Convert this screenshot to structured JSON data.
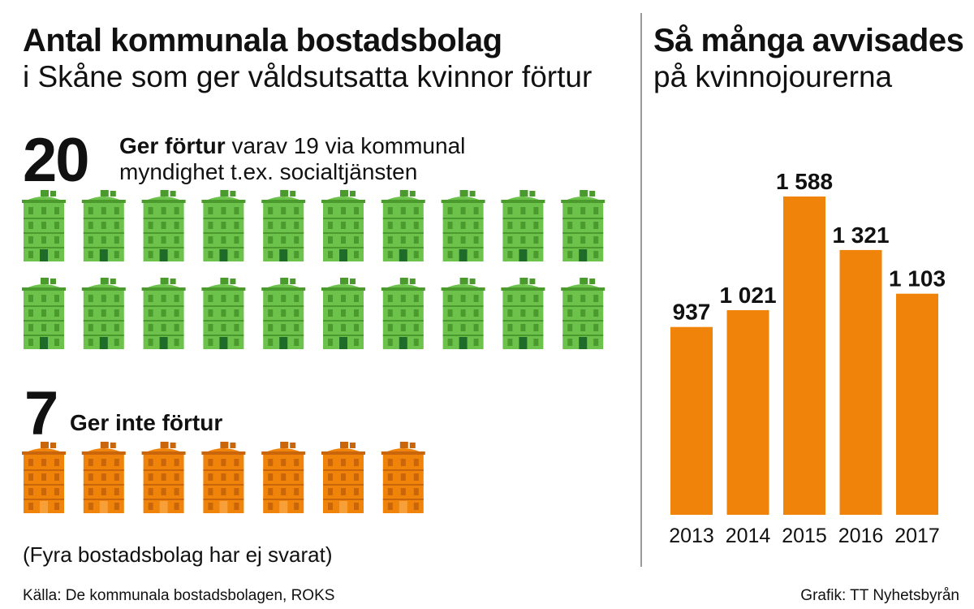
{
  "left": {
    "title": "Antal kommunala bostadsbolag",
    "subtitle": "i Skåne som ger våldsutsatta kvinnor förtur",
    "group_yes": {
      "count_label": "20",
      "count": 20,
      "label_bold": "Ger förtur",
      "label_line1": "varav 19 via kommunal",
      "label_line2": "myndighet t.ex. socialtjänsten",
      "color": "#6cc24a",
      "color_dark": "#4a9a2e",
      "door_color": "#1f6b2a"
    },
    "group_no": {
      "count_label": "7",
      "count": 7,
      "label_bold": "Ger inte förtur",
      "color": "#f0840a",
      "color_dark": "#c9650a",
      "door_color": "#f7a03a"
    },
    "note": "(Fyra bostadsbolag har ej svarat)"
  },
  "right": {
    "title": "Så många avvisades",
    "subtitle": "på kvinnojourerna"
  },
  "footer": {
    "source": "Källa: De kommunala bostadsbolagen, ROKS",
    "credit": "Grafik: TT Nyhetsbyrån"
  },
  "chart_data": [
    {
      "type": "bar",
      "title": "Så många avvisades",
      "subtitle": "på kvinnojourerna",
      "categories": [
        "2013",
        "2014",
        "2015",
        "2016",
        "2017"
      ],
      "values": [
        937,
        1021,
        1588,
        1321,
        1103
      ],
      "value_labels": [
        "937",
        "1 021",
        "1 588",
        "1 321",
        "1 103"
      ],
      "bar_color": "#f0840a",
      "ylim": [
        0,
        1588
      ],
      "grid": false
    },
    {
      "type": "pictogram",
      "title": "Antal kommunala bostadsbolag",
      "subtitle": "i Skåne som ger våldsutsatta kvinnor förtur",
      "categories": [
        "Ger förtur",
        "Ger inte förtur"
      ],
      "values": [
        20,
        7
      ]
    }
  ]
}
